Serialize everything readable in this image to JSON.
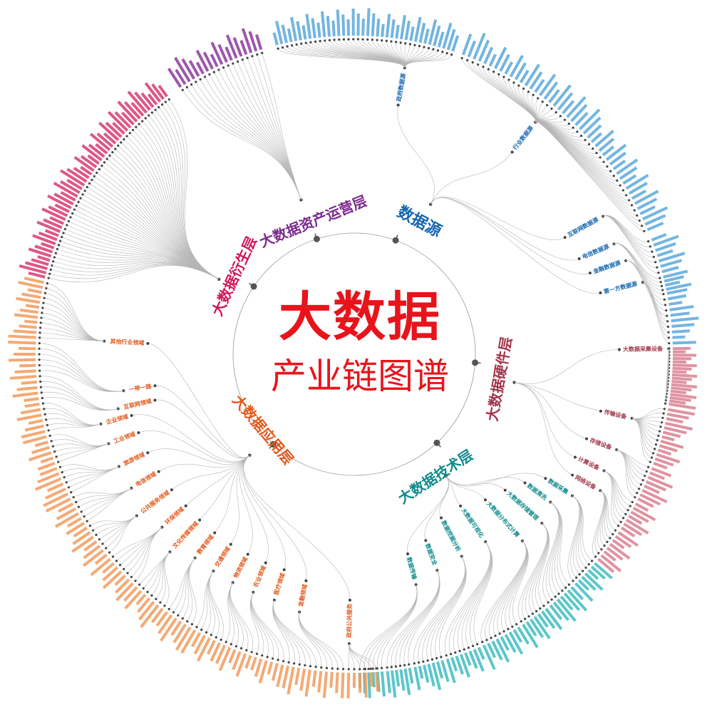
{
  "title": {
    "main": "大数据",
    "sub": "产业链图谱",
    "color": "#e8141c"
  },
  "ring_color": "#9a9a9a",
  "layers": [
    {
      "name": "数据源",
      "color": "#1565b0",
      "leaf_color": "#5aa8dc",
      "children": [
        "政府数据源",
        "行业数据源",
        "互联网数据源",
        "电信数据源",
        "金融数据源",
        "第一方数据源"
      ]
    },
    {
      "name": "大数据硬件层",
      "color": "#a3364a",
      "leaf_color": "#d98090",
      "children": [
        "大数据采集设备",
        "传输设备",
        "存储设备",
        "计算设备",
        "网络设备"
      ]
    },
    {
      "name": "大数据技术层",
      "color": "#0f8a8c",
      "leaf_color": "#3fbcc0",
      "children": [
        "数据采集",
        "数据清洗",
        "大数据存储管理",
        "大数据分布式计算",
        "大数据可视化",
        "数据挖掘分析",
        "数据安全",
        "数据传输"
      ]
    },
    {
      "name": "大数据应用层",
      "color": "#e2581a",
      "leaf_color": "#f29a5c",
      "children": [
        "其他行业领域",
        "一带一路",
        "互联网领域",
        "企业领域",
        "工业领域",
        "旅游领域",
        "电信领域",
        "公共服务领域",
        "环保领域",
        "文化传媒领域",
        "教育领域",
        "交通领域",
        "物流领域",
        "农业领域",
        "医疗领域",
        "金融领域",
        "政府公共服务"
      ]
    },
    {
      "name": "大数据衍生层",
      "color": "#d0155a",
      "leaf_color": "#d83a6e",
      "children": []
    },
    {
      "name": "大数据资产运营层",
      "color": "#7b2a8c",
      "leaf_color": "#8d3a9e",
      "children": []
    }
  ]
}
